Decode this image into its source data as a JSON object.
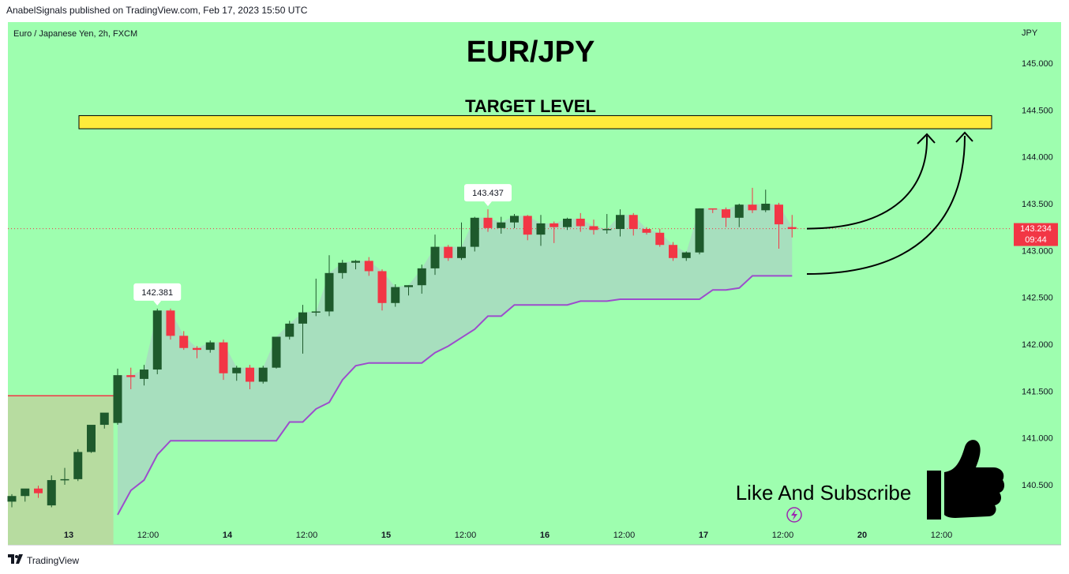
{
  "header": {
    "published": "AnabelSignals published on TradingView.com, Feb 17, 2023 15:50 UTC"
  },
  "footer": {
    "logo_icon": "tradingview-logo-icon",
    "brand": "TradingView"
  },
  "chart_data": {
    "type": "candlestick",
    "symbol": "Euro / Japanese Yen, 2h, FXCM",
    "title": "EUR/JPY",
    "currency": "JPY",
    "target_label": "TARGET LEVEL",
    "target_zone": [
      144.3,
      144.44
    ],
    "last_price": "143.234",
    "countdown": "09:44",
    "high_labels": [
      {
        "index": 11,
        "text": "142.381"
      },
      {
        "index": 36,
        "text": "143.437"
      }
    ],
    "promo_text": "Like And Subscribe",
    "y_ticks": [
      "145.000",
      "144.500",
      "144.000",
      "143.500",
      "143.000",
      "142.500",
      "142.000",
      "141.500",
      "141.000",
      "140.500"
    ],
    "y_tick_values": [
      145.0,
      144.5,
      144.0,
      143.5,
      143.0,
      142.5,
      142.0,
      141.5,
      141.0,
      140.5
    ],
    "ylim": [
      140.05,
      145.4
    ],
    "x_ticks": [
      {
        "index": 4.3,
        "label": "13",
        "bold": true
      },
      {
        "index": 10.3,
        "label": "12:00",
        "bold": false
      },
      {
        "index": 16.3,
        "label": "14",
        "bold": true
      },
      {
        "index": 22.3,
        "label": "12:00",
        "bold": false
      },
      {
        "index": 28.3,
        "label": "15",
        "bold": true
      },
      {
        "index": 34.3,
        "label": "12:00",
        "bold": false
      },
      {
        "index": 40.3,
        "label": "16",
        "bold": true
      },
      {
        "index": 46.3,
        "label": "12:00",
        "bold": false
      },
      {
        "index": 52.3,
        "label": "17",
        "bold": true
      },
      {
        "index": 58.3,
        "label": "12:00",
        "bold": false
      },
      {
        "index": 64.3,
        "label": "20",
        "bold": true
      },
      {
        "index": 70.3,
        "label": "12:00",
        "bold": false
      }
    ],
    "colors": {
      "background": "#9efeaf",
      "up": "#1e5a2c",
      "down": "#f23645",
      "target_fill": "#ffeb3b",
      "stop_line": "#9c4dcc",
      "price_line": "#f23645",
      "fill_area": "#a7dcc0"
    },
    "candles": [
      {
        "o": 140.32,
        "h": 140.4,
        "l": 140.26,
        "c": 140.38
      },
      {
        "o": 140.38,
        "h": 140.45,
        "l": 140.32,
        "c": 140.46
      },
      {
        "o": 140.46,
        "h": 140.49,
        "l": 140.36,
        "c": 140.41
      },
      {
        "o": 140.28,
        "h": 140.6,
        "l": 140.26,
        "c": 140.55
      },
      {
        "o": 140.55,
        "h": 140.68,
        "l": 140.5,
        "c": 140.56
      },
      {
        "o": 140.56,
        "h": 140.88,
        "l": 140.54,
        "c": 140.85
      },
      {
        "o": 140.85,
        "h": 141.1,
        "l": 140.84,
        "c": 141.14
      },
      {
        "o": 141.14,
        "h": 141.22,
        "l": 141.1,
        "c": 141.27
      },
      {
        "o": 141.16,
        "h": 141.74,
        "l": 141.14,
        "c": 141.67
      },
      {
        "o": 141.67,
        "h": 141.75,
        "l": 141.52,
        "c": 141.65
      },
      {
        "o": 141.63,
        "h": 141.78,
        "l": 141.56,
        "c": 141.73
      },
      {
        "o": 141.73,
        "h": 142.38,
        "l": 141.68,
        "c": 142.36
      },
      {
        "o": 142.36,
        "h": 142.38,
        "l": 142.05,
        "c": 142.09
      },
      {
        "o": 142.09,
        "h": 142.14,
        "l": 141.94,
        "c": 141.96
      },
      {
        "o": 141.96,
        "h": 141.98,
        "l": 141.85,
        "c": 141.94
      },
      {
        "o": 141.94,
        "h": 142.04,
        "l": 141.91,
        "c": 142.02
      },
      {
        "o": 142.02,
        "h": 142.05,
        "l": 141.62,
        "c": 141.69
      },
      {
        "o": 141.69,
        "h": 141.77,
        "l": 141.61,
        "c": 141.75
      },
      {
        "o": 141.75,
        "h": 141.78,
        "l": 141.52,
        "c": 141.6
      },
      {
        "o": 141.6,
        "h": 141.77,
        "l": 141.58,
        "c": 141.75
      },
      {
        "o": 141.75,
        "h": 142.08,
        "l": 141.74,
        "c": 142.08
      },
      {
        "o": 142.08,
        "h": 142.25,
        "l": 142.05,
        "c": 142.22
      },
      {
        "o": 142.22,
        "h": 142.42,
        "l": 141.9,
        "c": 142.34
      },
      {
        "o": 142.34,
        "h": 142.7,
        "l": 142.3,
        "c": 142.35
      },
      {
        "o": 142.35,
        "h": 142.95,
        "l": 142.3,
        "c": 142.76
      },
      {
        "o": 142.76,
        "h": 142.9,
        "l": 142.7,
        "c": 142.87
      },
      {
        "o": 142.87,
        "h": 142.9,
        "l": 142.8,
        "c": 142.89
      },
      {
        "o": 142.89,
        "h": 142.93,
        "l": 142.73,
        "c": 142.78
      },
      {
        "o": 142.78,
        "h": 142.8,
        "l": 142.36,
        "c": 142.44
      },
      {
        "o": 142.44,
        "h": 142.64,
        "l": 142.4,
        "c": 142.61
      },
      {
        "o": 142.61,
        "h": 142.63,
        "l": 142.52,
        "c": 142.63
      },
      {
        "o": 142.63,
        "h": 142.85,
        "l": 142.54,
        "c": 142.81
      },
      {
        "o": 142.81,
        "h": 143.17,
        "l": 142.74,
        "c": 143.04
      },
      {
        "o": 143.04,
        "h": 143.06,
        "l": 142.89,
        "c": 142.92
      },
      {
        "o": 142.92,
        "h": 143.3,
        "l": 142.9,
        "c": 143.04
      },
      {
        "o": 143.04,
        "h": 143.36,
        "l": 142.99,
        "c": 143.35
      },
      {
        "o": 143.35,
        "h": 143.44,
        "l": 143.2,
        "c": 143.24
      },
      {
        "o": 143.24,
        "h": 143.36,
        "l": 143.18,
        "c": 143.3
      },
      {
        "o": 143.3,
        "h": 143.39,
        "l": 143.24,
        "c": 143.37
      },
      {
        "o": 143.37,
        "h": 143.38,
        "l": 143.11,
        "c": 143.17
      },
      {
        "o": 143.17,
        "h": 143.38,
        "l": 143.05,
        "c": 143.29
      },
      {
        "o": 143.29,
        "h": 143.31,
        "l": 143.08,
        "c": 143.25
      },
      {
        "o": 143.25,
        "h": 143.35,
        "l": 143.22,
        "c": 143.34
      },
      {
        "o": 143.34,
        "h": 143.4,
        "l": 143.2,
        "c": 143.26
      },
      {
        "o": 143.26,
        "h": 143.33,
        "l": 143.17,
        "c": 143.22
      },
      {
        "o": 143.22,
        "h": 143.39,
        "l": 143.18,
        "c": 143.23
      },
      {
        "o": 143.23,
        "h": 143.44,
        "l": 143.15,
        "c": 143.38
      },
      {
        "o": 143.38,
        "h": 143.4,
        "l": 143.16,
        "c": 143.23
      },
      {
        "o": 143.23,
        "h": 143.25,
        "l": 143.17,
        "c": 143.19
      },
      {
        "o": 143.19,
        "h": 143.23,
        "l": 143.04,
        "c": 143.06
      },
      {
        "o": 143.06,
        "h": 143.09,
        "l": 142.89,
        "c": 142.92
      },
      {
        "o": 142.92,
        "h": 142.99,
        "l": 142.89,
        "c": 142.98
      },
      {
        "o": 142.98,
        "h": 143.45,
        "l": 142.96,
        "c": 143.45
      },
      {
        "o": 143.45,
        "h": 143.45,
        "l": 143.4,
        "c": 143.44
      },
      {
        "o": 143.44,
        "h": 143.46,
        "l": 143.25,
        "c": 143.35
      },
      {
        "o": 143.35,
        "h": 143.5,
        "l": 143.25,
        "c": 143.49
      },
      {
        "o": 143.49,
        "h": 143.67,
        "l": 143.4,
        "c": 143.43
      },
      {
        "o": 143.43,
        "h": 143.65,
        "l": 143.41,
        "c": 143.5
      },
      {
        "o": 143.49,
        "h": 143.51,
        "l": 143.02,
        "c": 143.28
      },
      {
        "o": 143.25,
        "h": 143.38,
        "l": 143.14,
        "c": 143.23
      }
    ],
    "stop_line": [
      {
        "i": 8,
        "v": 140.18
      },
      {
        "i": 9,
        "v": 140.44
      },
      {
        "i": 10,
        "v": 140.55
      },
      {
        "i": 11,
        "v": 140.82
      },
      {
        "i": 12,
        "v": 140.97
      },
      {
        "i": 20,
        "v": 140.97
      },
      {
        "i": 21,
        "v": 141.17
      },
      {
        "i": 22,
        "v": 141.17
      },
      {
        "i": 23,
        "v": 141.31
      },
      {
        "i": 24,
        "v": 141.38
      },
      {
        "i": 25,
        "v": 141.62
      },
      {
        "i": 26,
        "v": 141.77
      },
      {
        "i": 27,
        "v": 141.8
      },
      {
        "i": 31,
        "v": 141.8
      },
      {
        "i": 32,
        "v": 141.91
      },
      {
        "i": 33,
        "v": 141.98
      },
      {
        "i": 34,
        "v": 142.07
      },
      {
        "i": 35,
        "v": 142.16
      },
      {
        "i": 36,
        "v": 142.3
      },
      {
        "i": 37,
        "v": 142.3
      },
      {
        "i": 38,
        "v": 142.42
      },
      {
        "i": 42,
        "v": 142.42
      },
      {
        "i": 43,
        "v": 142.46
      },
      {
        "i": 45,
        "v": 142.46
      },
      {
        "i": 46,
        "v": 142.48
      },
      {
        "i": 52,
        "v": 142.48
      },
      {
        "i": 53,
        "v": 142.58
      },
      {
        "i": 54,
        "v": 142.58
      },
      {
        "i": 55,
        "v": 142.6
      },
      {
        "i": 56,
        "v": 142.73
      },
      {
        "i": 59,
        "v": 142.73
      }
    ],
    "left_zone": {
      "from": -0.5,
      "to": 7.5,
      "top": 141.45,
      "bottom": 140.05
    }
  }
}
